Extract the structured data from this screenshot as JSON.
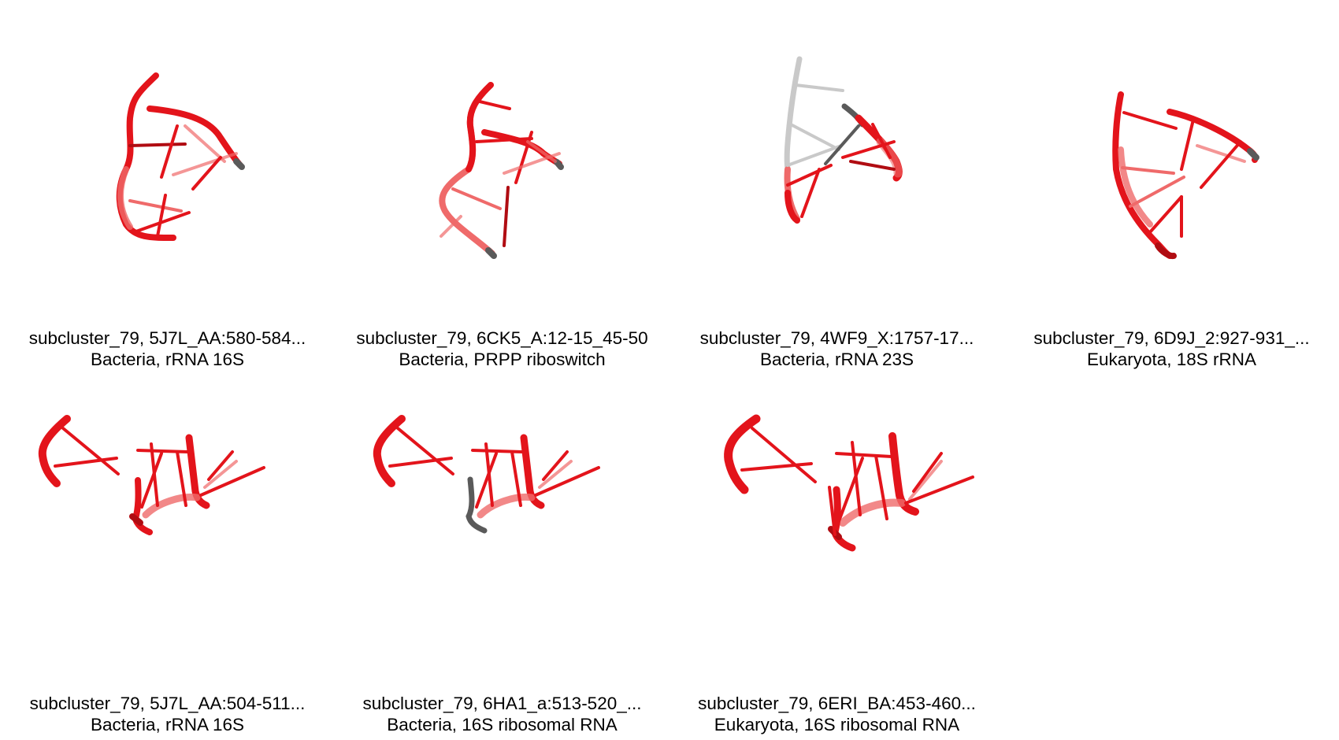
{
  "colors": {
    "rna_red": "#e3141b",
    "rna_dark_red": "#b00c12",
    "rna_light_red": "#ef6a6a",
    "tip_gray": "#5a5a5a",
    "faded_gray": "#c9c9c9"
  },
  "panels": [
    {
      "title": "subcluster_79, 5J7L_AA:580-584...",
      "subtitle": "Bacteria, rRNA 16S"
    },
    {
      "title": "subcluster_79, 6CK5_A:12-15_45-50",
      "subtitle": "Bacteria, PRPP riboswitch"
    },
    {
      "title": "subcluster_79, 4WF9_X:1757-17...",
      "subtitle": "Bacteria, rRNA 23S"
    },
    {
      "title": "subcluster_79, 6D9J_2:927-931_...",
      "subtitle": "Eukaryota, 18S rRNA"
    },
    {
      "title": "subcluster_79, 5J7L_AA:504-511...",
      "subtitle": "Bacteria, rRNA 16S"
    },
    {
      "title": "subcluster_79, 6HA1_a:513-520_...",
      "subtitle": "Bacteria, 16S ribosomal RNA"
    },
    {
      "title": "subcluster_79, 6ERI_BA:453-460...",
      "subtitle": "Eukaryota, 16S ribosomal RNA"
    }
  ]
}
